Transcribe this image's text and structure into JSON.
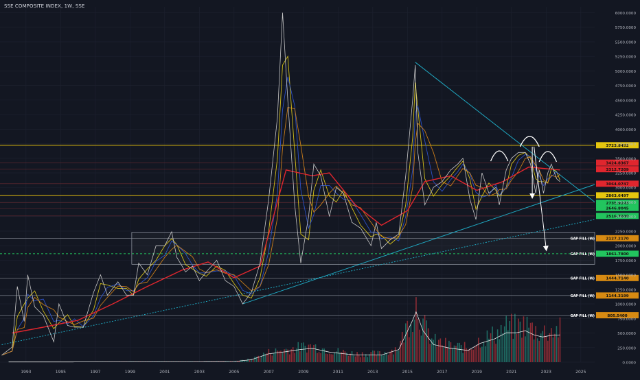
{
  "header": {
    "title": "SSE COMPOSITE INDEX, 1W, SSE"
  },
  "colors": {
    "background": "#131722",
    "grid": "#1e2230",
    "price_line": "#c8c8c8",
    "ma_red": "#e0262e",
    "ma_orange": "#e08a1a",
    "ma_blue": "#3058d8",
    "ma_yellow": "#e8d11a",
    "trendline": "#1fa7c0",
    "resistance": "#e6c20e",
    "gapfill": "#d78a12",
    "volume_up": "#1f6b63",
    "volume_down": "#8c2b34"
  },
  "chart_data": {
    "type": "line",
    "scale": "linear",
    "x_tick_labels": [
      "1993",
      "1995",
      "1997",
      "1999",
      "2001",
      "2003",
      "2005",
      "2007",
      "2009",
      "2011",
      "2013",
      "2015",
      "2017",
      "2019",
      "2021",
      "2023",
      "2025"
    ],
    "y_tick_labels": [
      "6000.0000",
      "5750.0000",
      "5500.0000",
      "5250.0000",
      "5000.0000",
      "4750.0000",
      "4500.0000",
      "4250.0000",
      "4000.0000",
      "3750.0000",
      "3500.0000",
      "3250.0000",
      "3000.0000",
      "2750.0000",
      "2500.0000",
      "2250.0000",
      "2000.0000",
      "1750.0000",
      "1500.0000",
      "1250.0000",
      "1000.0000",
      "750.0000",
      "500.0000",
      "250.0000",
      "0.0000"
    ],
    "ylim": [
      0,
      6100
    ],
    "xlim": [
      1991.5,
      2025.8
    ],
    "price_series": [
      [
        1991.6,
        120
      ],
      [
        1992.2,
        260
      ],
      [
        1992.5,
        1300
      ],
      [
        1992.9,
        700
      ],
      [
        1993.1,
        1500
      ],
      [
        1993.5,
        950
      ],
      [
        1994.0,
        800
      ],
      [
        1994.6,
        350
      ],
      [
        1994.9,
        1000
      ],
      [
        1995.4,
        630
      ],
      [
        1995.8,
        600
      ],
      [
        1996.3,
        600
      ],
      [
        1996.9,
        1200
      ],
      [
        1997.3,
        1500
      ],
      [
        1997.7,
        1150
      ],
      [
        1998.3,
        1380
      ],
      [
        1998.8,
        1150
      ],
      [
        1999.2,
        1150
      ],
      [
        1999.5,
        1700
      ],
      [
        2000.0,
        1500
      ],
      [
        2000.5,
        2000
      ],
      [
        2001.0,
        2000
      ],
      [
        2001.4,
        2240
      ],
      [
        2001.7,
        1800
      ],
      [
        2002.2,
        1550
      ],
      [
        2002.6,
        1650
      ],
      [
        2003.0,
        1400
      ],
      [
        2003.4,
        1550
      ],
      [
        2004.0,
        1750
      ],
      [
        2004.5,
        1400
      ],
      [
        2005.0,
        1300
      ],
      [
        2005.5,
        1000
      ],
      [
        2006.0,
        1200
      ],
      [
        2006.5,
        1700
      ],
      [
        2007.0,
        2800
      ],
      [
        2007.5,
        4200
      ],
      [
        2007.8,
        6000
      ],
      [
        2008.1,
        4500
      ],
      [
        2008.5,
        2700
      ],
      [
        2008.85,
        1700
      ],
      [
        2009.3,
        2500
      ],
      [
        2009.6,
        3400
      ],
      [
        2010.0,
        3200
      ],
      [
        2010.5,
        2500
      ],
      [
        2010.9,
        3000
      ],
      [
        2011.3,
        2900
      ],
      [
        2011.8,
        2400
      ],
      [
        2012.3,
        2300
      ],
      [
        2012.9,
        2000
      ],
      [
        2013.2,
        2400
      ],
      [
        2013.5,
        1950
      ],
      [
        2014.0,
        2100
      ],
      [
        2014.5,
        2200
      ],
      [
        2014.9,
        3200
      ],
      [
        2015.3,
        4500
      ],
      [
        2015.45,
        5100
      ],
      [
        2015.6,
        3600
      ],
      [
        2016.0,
        2700
      ],
      [
        2016.5,
        3000
      ],
      [
        2017.0,
        3100
      ],
      [
        2017.5,
        3300
      ],
      [
        2017.9,
        3400
      ],
      [
        2018.2,
        3500
      ],
      [
        2018.6,
        2800
      ],
      [
        2018.95,
        2450
      ],
      [
        2019.3,
        3250
      ],
      [
        2019.7,
        2900
      ],
      [
        2020.1,
        3000
      ],
      [
        2020.3,
        2700
      ],
      [
        2020.7,
        3300
      ],
      [
        2021.0,
        3500
      ],
      [
        2021.4,
        3600
      ],
      [
        2021.8,
        3600
      ],
      [
        2022.1,
        3400
      ],
      [
        2022.4,
        2900
      ],
      [
        2022.6,
        3300
      ],
      [
        2022.85,
        2900
      ],
      [
        2023.1,
        3250
      ],
      [
        2023.3,
        3400
      ],
      [
        2023.6,
        3150
      ],
      [
        2023.8,
        3100
      ]
    ],
    "series": [
      {
        "values": [
          [
            1992.2,
            500
          ],
          [
            1994.0,
            600
          ],
          [
            1996.0,
            720
          ],
          [
            1998.0,
            1000
          ],
          [
            2000.0,
            1300
          ],
          [
            2002.0,
            1580
          ],
          [
            2003.5,
            1720
          ],
          [
            2005.0,
            1450
          ],
          [
            2006.5,
            1650
          ],
          [
            2008.0,
            3300
          ],
          [
            2009.5,
            3200
          ],
          [
            2010.5,
            3250
          ],
          [
            2012.0,
            2700
          ],
          [
            2013.5,
            2350
          ],
          [
            2015.0,
            2600
          ],
          [
            2016.0,
            3100
          ],
          [
            2017.5,
            3200
          ],
          [
            2019.0,
            2950
          ],
          [
            2020.5,
            3100
          ],
          [
            2022.0,
            3350
          ],
          [
            2023.8,
            3300
          ]
        ]
      }
    ],
    "levels": [
      {
        "label": "3723.8452",
        "value": 3723.85,
        "style": "solid"
      },
      {
        "label": "3424.8367",
        "value": 3424.84,
        "style": "solid"
      },
      {
        "label": "3312.7209",
        "value": 3312.72,
        "style": "solid"
      },
      {
        "label": "3064.0747",
        "value": 3064.07,
        "style": "solid"
      },
      {
        "label": "2863.6497",
        "value": 2863.65,
        "style": "solid"
      },
      {
        "label": "2735.9243",
        "value": 2735.92,
        "style": "solid"
      },
      {
        "label": "2646.8045",
        "value": 2646.8,
        "style": "solid"
      },
      {
        "label": "2510.7000",
        "value": 2510.7,
        "style": "solid"
      },
      {
        "label": "2127.2170",
        "value": 2127.22,
        "style": "solid",
        "tag": "GAP FILL (W)"
      },
      {
        "label": "1861.7800",
        "value": 1861.78,
        "style": "dashed",
        "tag": "GAP FILL (W)"
      },
      {
        "label": "1444.7140",
        "value": 1444.71,
        "style": "solid",
        "tag": "GAP FILL (W)"
      },
      {
        "label": "1144.3199",
        "value": 1144.32,
        "style": "solid",
        "tag": "GAP FILL (W)"
      },
      {
        "label": "805.5400",
        "value": 805.54,
        "style": "solid",
        "tag": "GAP FILL (W)"
      }
    ],
    "trendlines": [
      {
        "from": [
          2005.5,
          1000
        ],
        "to": [
          2025.8,
          3050
        ]
      },
      {
        "from": [
          2015.45,
          5150
        ],
        "to": [
          2025.8,
          2750
        ]
      },
      {
        "from": [
          1991.6,
          300
        ],
        "to": [
          2025.8,
          2450
        ]
      }
    ],
    "boxes": [
      {
        "from": [
          1999.1,
          2230
        ],
        "to": [
          2025.8,
          1680
        ]
      }
    ],
    "volume": [
      [
        1992.0,
        5
      ],
      [
        1995.0,
        5
      ],
      [
        1998.0,
        8
      ],
      [
        2000.0,
        10
      ],
      [
        2003.0,
        10
      ],
      [
        2005.0,
        15
      ],
      [
        2006.0,
        60
      ],
      [
        2007.0,
        200
      ],
      [
        2008.0,
        250
      ],
      [
        2008.8,
        300
      ],
      [
        2009.5,
        330
      ],
      [
        2010.5,
        240
      ],
      [
        2012.0,
        170
      ],
      [
        2013.5,
        170
      ],
      [
        2014.5,
        300
      ],
      [
        2015.3,
        1000
      ],
      [
        2015.5,
        1200
      ],
      [
        2015.9,
        750
      ],
      [
        2016.5,
        420
      ],
      [
        2017.5,
        330
      ],
      [
        2018.5,
        280
      ],
      [
        2019.2,
        450
      ],
      [
        2020.0,
        550
      ],
      [
        2020.7,
        700
      ],
      [
        2021.3,
        700
      ],
      [
        2021.8,
        750
      ],
      [
        2022.3,
        650
      ],
      [
        2022.8,
        600
      ],
      [
        2023.3,
        640
      ],
      [
        2023.8,
        650
      ]
    ]
  }
}
